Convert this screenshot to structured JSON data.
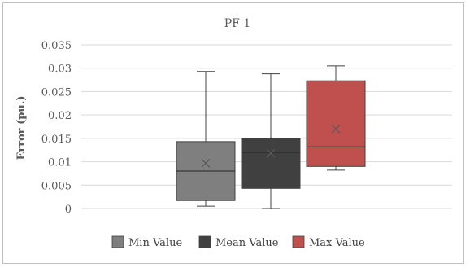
{
  "chart_data": {
    "type": "box",
    "title": "PF 1",
    "ylabel": "Error (pu.)",
    "xlabel": "",
    "ylim": [
      0,
      0.035
    ],
    "yticks": [
      {
        "value": 0,
        "label": "0"
      },
      {
        "value": 0.005,
        "label": "0.005"
      },
      {
        "value": 0.01,
        "label": "0.01"
      },
      {
        "value": 0.015,
        "label": "0.015"
      },
      {
        "value": 0.02,
        "label": "0.02"
      },
      {
        "value": 0.025,
        "label": "0.025"
      },
      {
        "value": 0.03,
        "label": "0.03"
      },
      {
        "value": 0.035,
        "label": "0.035"
      }
    ],
    "grid": true,
    "legend_position": "bottom",
    "series": [
      {
        "name": "Min Value",
        "color": "#7f7f7f",
        "whisker_low": 0.0005,
        "q1": 0.0017,
        "median": 0.008,
        "mean": 0.0097,
        "q3": 0.0143,
        "whisker_high": 0.0293
      },
      {
        "name": "Mean Value",
        "color": "#404040",
        "whisker_low": 0.0,
        "q1": 0.0043,
        "median": 0.012,
        "mean": 0.0118,
        "q3": 0.0149,
        "whisker_high": 0.0288
      },
      {
        "name": "Max Value",
        "color": "#c0504d",
        "whisker_low": 0.0082,
        "q1": 0.009,
        "median": 0.0132,
        "mean": 0.017,
        "q3": 0.0273,
        "whisker_high": 0.0305
      }
    ]
  }
}
